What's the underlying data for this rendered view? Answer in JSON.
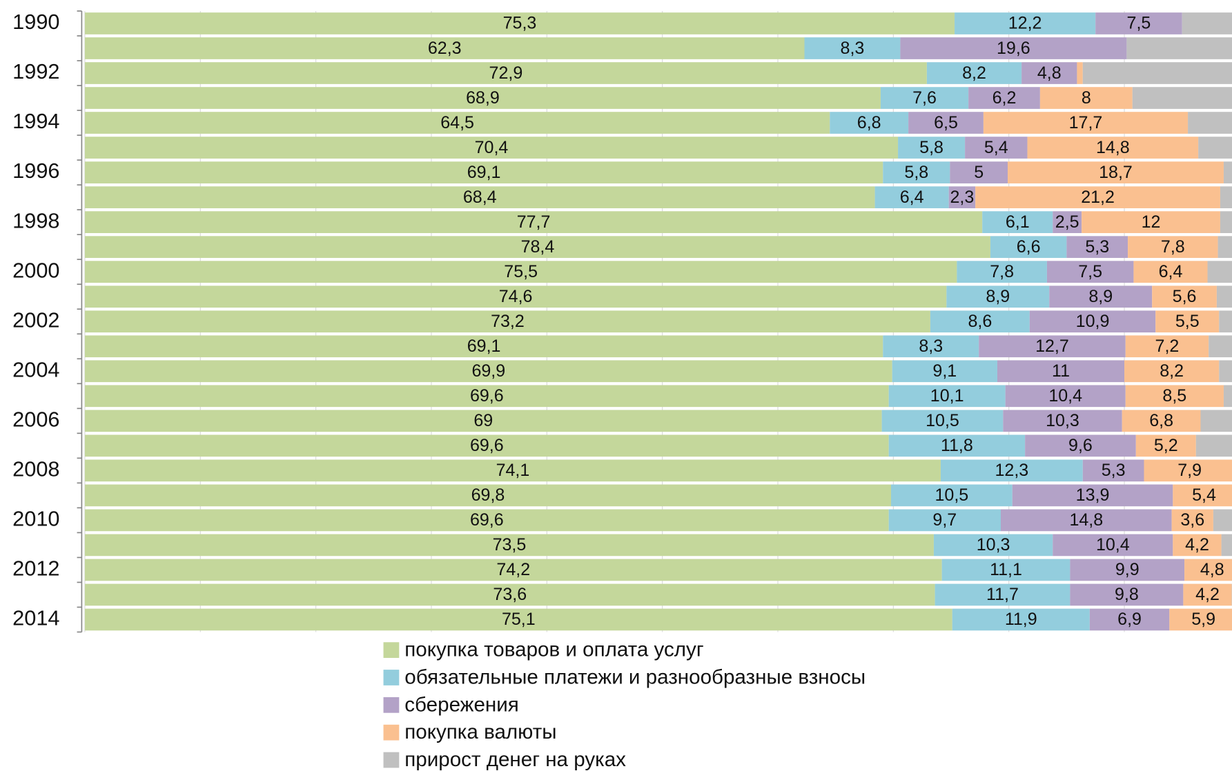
{
  "chart_data": {
    "type": "stacked_barh",
    "categories": [
      "1990",
      null,
      "1992",
      null,
      "1994",
      null,
      "1996",
      null,
      "1998",
      null,
      "2000",
      null,
      "2002",
      null,
      "2004",
      null,
      "2006",
      null,
      "2008",
      null,
      "2010",
      null,
      "2012",
      null,
      "2014"
    ],
    "xlim": [
      0,
      100
    ],
    "xticks": [
      0,
      10,
      20,
      30,
      40,
      50,
      60,
      70,
      80,
      90,
      100
    ],
    "grid": true,
    "legend": "bottom",
    "series": [
      {
        "name": "покупка товаров и оплата услуг",
        "color": "#c4d79b",
        "values": [
          75.3,
          62.3,
          72.9,
          68.9,
          64.5,
          70.4,
          69.1,
          68.4,
          77.7,
          78.4,
          75.5,
          74.6,
          73.2,
          69.1,
          69.9,
          69.6,
          69,
          69.6,
          74.1,
          69.8,
          69.6,
          73.5,
          74.2,
          73.6,
          75.1
        ],
        "value_labels": [
          "75,3",
          "62,3",
          "72,9",
          "68,9",
          "64,5",
          "70,4",
          "69,1",
          "68,4",
          "77,7",
          "78,4",
          "75,5",
          "74,6",
          "73,2",
          "69,1",
          "69,9",
          "69,6",
          "69",
          "69,6",
          "74,1",
          "69,8",
          "69,6",
          "73,5",
          "74,2",
          "73,6",
          "75,1"
        ]
      },
      {
        "name": "обязательные платежи и разнообразные взносы",
        "color": "#93cddd",
        "values": [
          12.2,
          8.3,
          8.2,
          7.6,
          6.8,
          5.8,
          5.8,
          6.4,
          6.1,
          6.6,
          7.8,
          8.9,
          8.6,
          8.3,
          9.1,
          10.1,
          10.5,
          11.8,
          12.3,
          10.5,
          9.7,
          10.3,
          11.1,
          11.7,
          11.9
        ],
        "value_labels": [
          "12,2",
          "8,3",
          "8,2",
          "7,6",
          "6,8",
          "5,8",
          "5,8",
          "6,4",
          "6,1",
          "6,6",
          "7,8",
          "8,9",
          "8,6",
          "8,3",
          "9,1",
          "10,1",
          "10,5",
          "11,8",
          "12,3",
          "10,5",
          "9,7",
          "10,3",
          "11,1",
          "11,7",
          "11,9"
        ]
      },
      {
        "name": "сбережения",
        "color": "#b3a2c7",
        "values": [
          7.5,
          19.6,
          4.8,
          6.2,
          6.5,
          5.4,
          5,
          2.3,
          2.5,
          5.3,
          7.5,
          8.9,
          10.9,
          12.7,
          11,
          10.4,
          10.3,
          9.6,
          5.3,
          13.9,
          14.8,
          10.4,
          9.9,
          9.8,
          6.9
        ],
        "value_labels": [
          "7,5",
          "19,6",
          "4,8",
          "6,2",
          "6,5",
          "5,4",
          "5",
          "2,3",
          "2,5",
          "5,3",
          "7,5",
          "8,9",
          "10,9",
          "12,7",
          "11",
          "10,4",
          "10,3",
          "9,6",
          "5,3",
          "13,9",
          "14,8",
          "10,4",
          "9,9",
          "9,8",
          "6,9"
        ]
      },
      {
        "name": "покупка валюты",
        "color": "#fac090",
        "values": [
          null,
          null,
          0.5,
          8,
          17.7,
          14.8,
          18.7,
          21.2,
          12,
          7.8,
          6.4,
          5.6,
          5.5,
          7.2,
          8.2,
          8.5,
          6.8,
          5.2,
          7.9,
          5.4,
          3.6,
          4.2,
          4.8,
          4.2,
          5.9
        ],
        "value_labels": [
          null,
          null,
          null,
          "8",
          "17,7",
          "14,8",
          "18,7",
          "21,2",
          "12",
          "7,8",
          "6,4",
          "5,6",
          "5,5",
          "7,2",
          "8,2",
          "8,5",
          "6,8",
          "5,2",
          "7,9",
          "5,4",
          "3,6",
          "4,2",
          "4,8",
          "4,2",
          "5,9"
        ]
      },
      {
        "name": "прирост денег на руках",
        "color": "#c0c0c0",
        "values": [
          5,
          9.8,
          13.6,
          9.3,
          4.5,
          3.6,
          1.4,
          1.7,
          1.7,
          1.9,
          2.8,
          2,
          1.8,
          2.7,
          1.8,
          1.4,
          3.4,
          3.8,
          0.4,
          0.4,
          2.3,
          1.6,
          0,
          0.7,
          0.2
        ]
      }
    ]
  }
}
